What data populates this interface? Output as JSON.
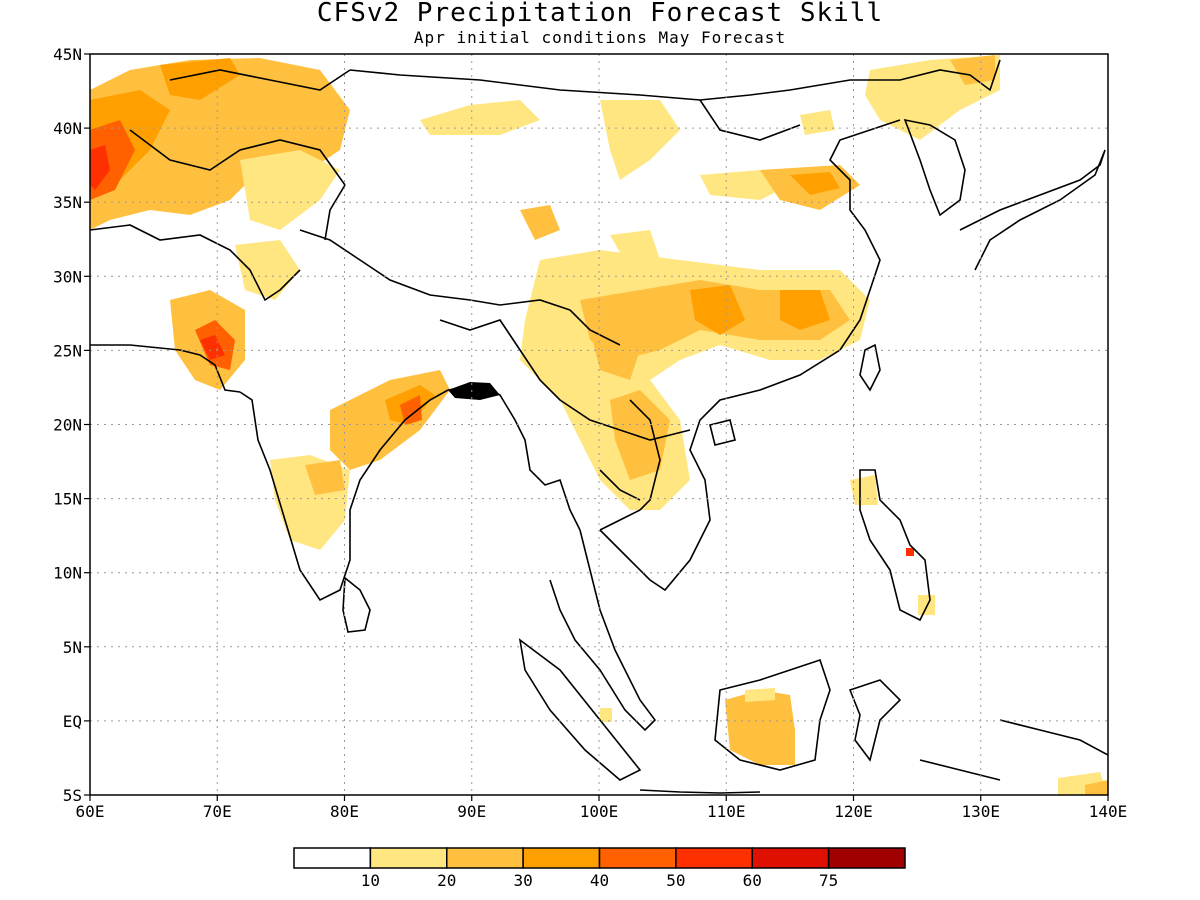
{
  "title": "CFSv2 Precipitation Forecast Skill",
  "subtitle": "Apr initial conditions  May Forecast",
  "lon_ticks": [
    "60E",
    "70E",
    "80E",
    "90E",
    "100E",
    "110E",
    "120E",
    "130E",
    "140E"
  ],
  "lat_ticks": [
    "45N",
    "40N",
    "35N",
    "30N",
    "25N",
    "20N",
    "15N",
    "10N",
    "5N",
    "EQ",
    "5S"
  ],
  "colorbar": {
    "colors": [
      "#ffffff",
      "#ffe680",
      "#ffc040",
      "#ffa000",
      "#ff6000",
      "#ff3000",
      "#e01000",
      "#a00000"
    ],
    "labels": [
      "10",
      "20",
      "30",
      "40",
      "50",
      "60",
      "75"
    ]
  },
  "extent": {
    "lon_min": 60,
    "lon_max": 140,
    "lat_min": -5,
    "lat_max": 45
  }
}
